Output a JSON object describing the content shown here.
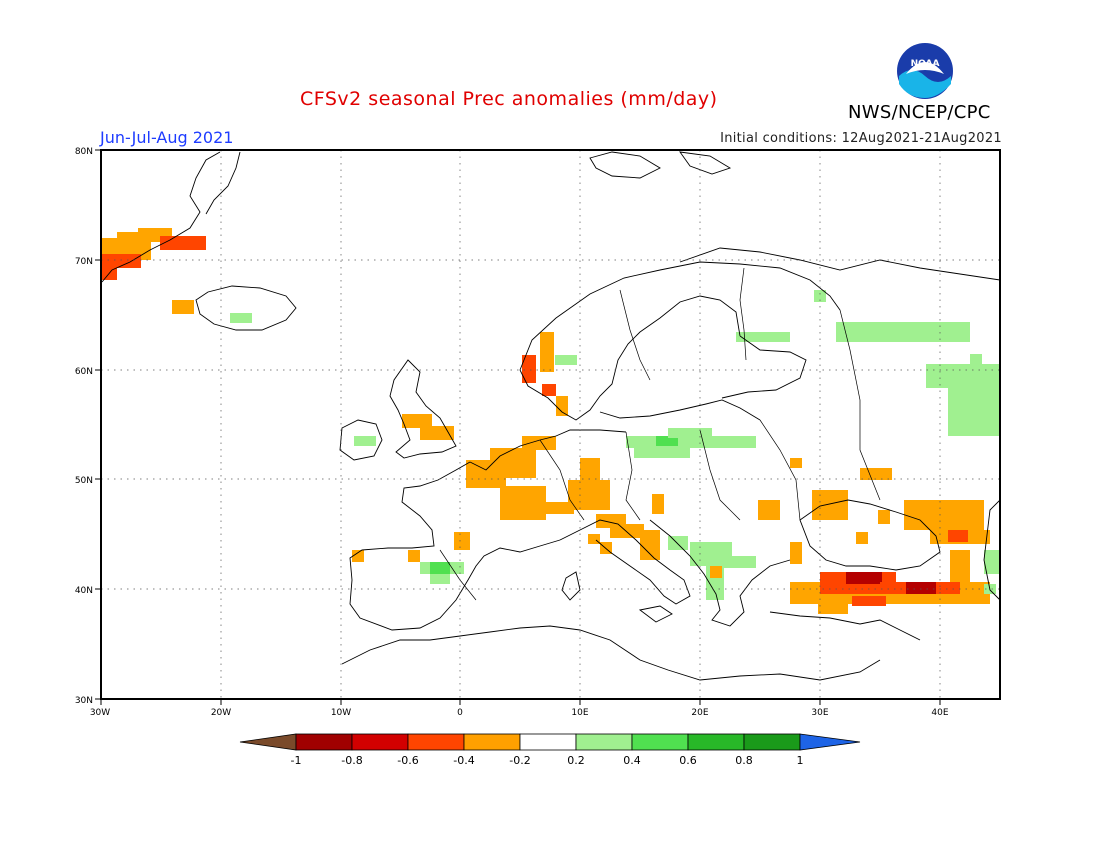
{
  "header": {
    "title": "CFSv2 seasonal Prec anomalies (mm/day)",
    "season": "Jun-Jul-Aug 2021",
    "initial_conditions": "Initial conditions: 12Aug2021-21Aug2021",
    "agency": "NWS/NCEP/CPC",
    "logo_text": "NOAA"
  },
  "map": {
    "lon_range": [
      -30,
      45
    ],
    "lat_range": [
      30,
      80
    ],
    "lon_ticks": [
      "30W",
      "20W",
      "10W",
      "0",
      "10E",
      "20E",
      "30E",
      "40E"
    ],
    "lat_ticks": [
      "30N",
      "40N",
      "50N",
      "60N",
      "70N",
      "80N"
    ],
    "grid": "dotted"
  },
  "colorbar": {
    "labels": [
      "-1",
      "-0.8",
      "-0.6",
      "-0.4",
      "-0.2",
      "0.2",
      "0.4",
      "0.6",
      "0.8",
      "1"
    ],
    "colors": [
      "#7a4a2a",
      "#a00000",
      "#d20000",
      "#ff4500",
      "#ffa000",
      "#ffffff",
      "#a0f090",
      "#50e050",
      "#28b828",
      "#1a9a1a",
      "#1e64e6"
    ]
  },
  "anomaly_colors": {
    "dry_light": "#ffa500",
    "dry_mid": "#ff4500",
    "dry_strong": "#b40000",
    "wet_light": "#a0f090",
    "wet_mid": "#50e050"
  }
}
